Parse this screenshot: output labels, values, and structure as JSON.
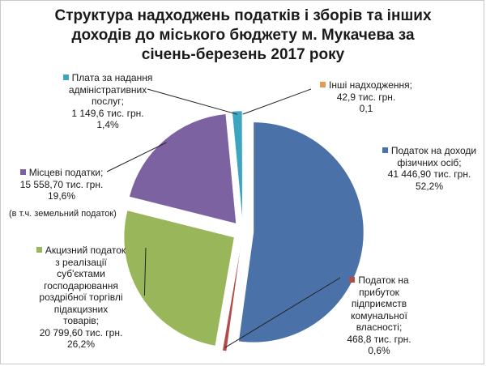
{
  "chart_data": {
    "type": "pie",
    "title_lines": [
      "Структура надходжень податків і зборів та інших",
      "доходів до міського бюджету м. Мукачева за",
      "січень-березень 2017 року"
    ],
    "slices": [
      {
        "key": "pdfo",
        "lines": [
          "Податок на доходи",
          "фізичних осіб;",
          "41 446,90 тис. грн.",
          "52,2%"
        ],
        "value": 41446.9,
        "percent": 52.2,
        "color": "#4a72a8"
      },
      {
        "key": "profit",
        "lines": [
          "Податок на",
          "прибуток",
          "підприємств",
          "комунальної",
          "власності;",
          "468,8 тис. грн.",
          "0,6%"
        ],
        "value": 468.8,
        "percent": 0.6,
        "color": "#b34b48"
      },
      {
        "key": "excise",
        "lines": [
          "Акцизний податок",
          "з реалізації",
          "суб'єктами",
          "господарювання",
          "роздрібної торгівлі",
          "підакцизних",
          "товарів;",
          "20 799,60 тис. грн.",
          "26,2%"
        ],
        "value": 20799.6,
        "percent": 26.2,
        "color": "#99b65a"
      },
      {
        "key": "local",
        "lines": [
          "Місцеві податки;",
          "15 558,70 тис. грн.",
          "19,6%"
        ],
        "note": "(в т.ч. земельний податок)",
        "value": 15558.7,
        "percent": 19.6,
        "color": "#7c62a1"
      },
      {
        "key": "admin",
        "lines": [
          "Плата за надання",
          "адміністративних",
          "послуг;",
          "1 149,6 тис. грн.",
          "1,4%"
        ],
        "value": 1149.6,
        "percent": 1.4,
        "color": "#3ea5c0"
      },
      {
        "key": "other",
        "lines": [
          "Інші надходження;",
          "42,9 тис. грн.",
          "0,1"
        ],
        "value": 42.9,
        "percent": 0.1,
        "color": "#e59a4f"
      }
    ]
  }
}
